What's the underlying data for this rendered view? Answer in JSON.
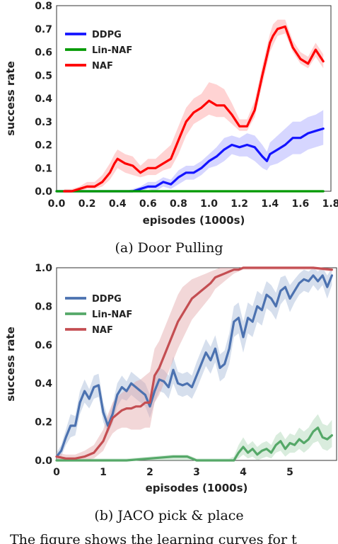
{
  "chart_data": [
    {
      "type": "line",
      "xlabel": "episodes (1000s)",
      "ylabel": "success rate",
      "xlim": [
        0.0,
        1.8
      ],
      "ylim": [
        0.0,
        0.8
      ],
      "xticks": [
        "0.0",
        "0.2",
        "0.4",
        "0.6",
        "0.8",
        "1.0",
        "1.2",
        "1.4",
        "1.6",
        "1.8"
      ],
      "yticks": [
        "0.0",
        "0.1",
        "0.2",
        "0.3",
        "0.4",
        "0.5",
        "0.6",
        "0.7",
        "0.8"
      ],
      "legend_position": "upper-left",
      "grid": false,
      "series": [
        {
          "name": "DDPG",
          "color": "#1414ff",
          "band_color": "#8a8aff",
          "x": [
            0.0,
            0.45,
            0.5,
            0.55,
            0.6,
            0.65,
            0.7,
            0.75,
            0.8,
            0.85,
            0.9,
            0.95,
            1.0,
            1.05,
            1.1,
            1.15,
            1.2,
            1.25,
            1.3,
            1.35,
            1.38,
            1.4,
            1.45,
            1.5,
            1.55,
            1.6,
            1.65,
            1.7,
            1.75
          ],
          "y": [
            0.0,
            0.0,
            0.0,
            0.01,
            0.02,
            0.02,
            0.04,
            0.03,
            0.06,
            0.08,
            0.08,
            0.1,
            0.13,
            0.15,
            0.18,
            0.2,
            0.19,
            0.2,
            0.19,
            0.15,
            0.13,
            0.16,
            0.18,
            0.2,
            0.23,
            0.23,
            0.25,
            0.26,
            0.27
          ],
          "lower": [
            0.0,
            0.0,
            0.0,
            0.0,
            0.01,
            0.0,
            0.02,
            0.01,
            0.03,
            0.05,
            0.05,
            0.07,
            0.1,
            0.11,
            0.13,
            0.16,
            0.15,
            0.15,
            0.13,
            0.1,
            0.09,
            0.11,
            0.12,
            0.14,
            0.16,
            0.16,
            0.18,
            0.19,
            0.2
          ],
          "upper": [
            0.0,
            0.0,
            0.01,
            0.02,
            0.04,
            0.04,
            0.06,
            0.05,
            0.09,
            0.11,
            0.11,
            0.13,
            0.16,
            0.19,
            0.23,
            0.24,
            0.23,
            0.25,
            0.24,
            0.2,
            0.17,
            0.21,
            0.24,
            0.27,
            0.3,
            0.3,
            0.32,
            0.33,
            0.35
          ]
        },
        {
          "name": "Lin-NAF",
          "color": "#009900",
          "x": [
            0.0,
            1.75
          ],
          "y": [
            0.0,
            0.0
          ]
        },
        {
          "name": "NAF",
          "color": "#ff0000",
          "band_color": "#ff8080",
          "x": [
            0.05,
            0.1,
            0.15,
            0.2,
            0.25,
            0.3,
            0.35,
            0.38,
            0.4,
            0.45,
            0.5,
            0.55,
            0.6,
            0.65,
            0.7,
            0.75,
            0.8,
            0.85,
            0.9,
            0.95,
            1.0,
            1.05,
            1.1,
            1.15,
            1.2,
            1.25,
            1.3,
            1.35,
            1.4,
            1.42,
            1.45,
            1.5,
            1.55,
            1.6,
            1.65,
            1.7,
            1.75
          ],
          "y": [
            0.0,
            0.0,
            0.01,
            0.02,
            0.02,
            0.04,
            0.08,
            0.12,
            0.14,
            0.12,
            0.11,
            0.08,
            0.1,
            0.1,
            0.12,
            0.14,
            0.22,
            0.3,
            0.34,
            0.36,
            0.39,
            0.37,
            0.37,
            0.33,
            0.28,
            0.28,
            0.35,
            0.5,
            0.64,
            0.67,
            0.7,
            0.71,
            0.62,
            0.57,
            0.55,
            0.61,
            0.56
          ],
          "lower": [
            0.0,
            0.0,
            0.0,
            0.01,
            0.01,
            0.02,
            0.05,
            0.08,
            0.1,
            0.08,
            0.07,
            0.06,
            0.07,
            0.07,
            0.09,
            0.1,
            0.16,
            0.24,
            0.29,
            0.31,
            0.33,
            0.32,
            0.32,
            0.29,
            0.26,
            0.26,
            0.32,
            0.46,
            0.6,
            0.63,
            0.67,
            0.68,
            0.6,
            0.55,
            0.53,
            0.58,
            0.53
          ],
          "upper": [
            0.01,
            0.01,
            0.02,
            0.04,
            0.04,
            0.07,
            0.12,
            0.16,
            0.18,
            0.16,
            0.15,
            0.11,
            0.14,
            0.14,
            0.17,
            0.2,
            0.28,
            0.36,
            0.4,
            0.42,
            0.47,
            0.46,
            0.44,
            0.38,
            0.31,
            0.31,
            0.39,
            0.54,
            0.68,
            0.72,
            0.74,
            0.74,
            0.65,
            0.6,
            0.58,
            0.64,
            0.59
          ]
        }
      ]
    },
    {
      "type": "line",
      "xlabel": "episodes (1000s)",
      "ylabel": "success rate",
      "xlim": [
        0,
        6
      ],
      "ylim": [
        0.0,
        1.0
      ],
      "xticks": [
        "0",
        "1",
        "2",
        "3",
        "4",
        "5"
      ],
      "yticks": [
        "0.0",
        "0.2",
        "0.4",
        "0.6",
        "0.8",
        "1.0"
      ],
      "legend_position": "upper-left",
      "grid": false,
      "series": [
        {
          "name": "DDPG",
          "color": "#4c72b0",
          "band_color": "#a5b8d8",
          "x": [
            0.0,
            0.1,
            0.2,
            0.3,
            0.4,
            0.5,
            0.6,
            0.7,
            0.8,
            0.9,
            1.0,
            1.1,
            1.2,
            1.3,
            1.4,
            1.5,
            1.6,
            1.7,
            1.8,
            1.9,
            2.0,
            2.1,
            2.2,
            2.3,
            2.4,
            2.5,
            2.6,
            2.7,
            2.8,
            2.9,
            3.0,
            3.1,
            3.2,
            3.3,
            3.4,
            3.5,
            3.6,
            3.7,
            3.8,
            3.9,
            4.0,
            4.1,
            4.2,
            4.3,
            4.4,
            4.5,
            4.6,
            4.7,
            4.8,
            4.9,
            5.0,
            5.1,
            5.2,
            5.3,
            5.4,
            5.5,
            5.6,
            5.7,
            5.8,
            5.9
          ],
          "y": [
            0.02,
            0.05,
            0.12,
            0.18,
            0.18,
            0.3,
            0.36,
            0.32,
            0.38,
            0.39,
            0.25,
            0.18,
            0.24,
            0.34,
            0.38,
            0.36,
            0.4,
            0.38,
            0.36,
            0.34,
            0.28,
            0.36,
            0.42,
            0.41,
            0.38,
            0.47,
            0.4,
            0.39,
            0.4,
            0.38,
            0.44,
            0.5,
            0.56,
            0.52,
            0.58,
            0.48,
            0.5,
            0.58,
            0.72,
            0.74,
            0.64,
            0.74,
            0.72,
            0.8,
            0.78,
            0.86,
            0.84,
            0.8,
            0.88,
            0.9,
            0.84,
            0.88,
            0.92,
            0.94,
            0.93,
            0.96,
            0.93,
            0.96,
            0.9,
            0.96
          ],
          "lower": [
            0.0,
            0.02,
            0.08,
            0.12,
            0.13,
            0.24,
            0.3,
            0.27,
            0.32,
            0.33,
            0.2,
            0.14,
            0.19,
            0.28,
            0.32,
            0.31,
            0.34,
            0.32,
            0.3,
            0.28,
            0.22,
            0.3,
            0.36,
            0.35,
            0.32,
            0.4,
            0.34,
            0.33,
            0.34,
            0.32,
            0.37,
            0.43,
            0.49,
            0.45,
            0.51,
            0.41,
            0.43,
            0.5,
            0.64,
            0.66,
            0.56,
            0.66,
            0.64,
            0.72,
            0.7,
            0.79,
            0.77,
            0.73,
            0.81,
            0.84,
            0.77,
            0.82,
            0.86,
            0.88,
            0.87,
            0.91,
            0.88,
            0.91,
            0.84,
            0.91
          ],
          "upper": [
            0.04,
            0.08,
            0.16,
            0.24,
            0.23,
            0.36,
            0.42,
            0.37,
            0.44,
            0.45,
            0.3,
            0.22,
            0.29,
            0.4,
            0.44,
            0.41,
            0.46,
            0.44,
            0.42,
            0.4,
            0.34,
            0.42,
            0.48,
            0.47,
            0.44,
            0.54,
            0.46,
            0.45,
            0.46,
            0.44,
            0.51,
            0.57,
            0.63,
            0.59,
            0.65,
            0.55,
            0.57,
            0.66,
            0.8,
            0.82,
            0.72,
            0.82,
            0.8,
            0.88,
            0.86,
            0.93,
            0.91,
            0.87,
            0.95,
            0.96,
            0.91,
            0.94,
            0.97,
            0.99,
            0.98,
            1.0,
            0.98,
            1.0,
            0.96,
            1.0
          ]
        },
        {
          "name": "Lin-NAF",
          "color": "#55a868",
          "band_color": "#aad4b4",
          "x": [
            0.0,
            0.5,
            1.0,
            1.5,
            2.0,
            2.5,
            2.8,
            3.0,
            3.2,
            3.4,
            3.6,
            3.7,
            3.8,
            3.9,
            4.0,
            4.1,
            4.2,
            4.3,
            4.4,
            4.5,
            4.6,
            4.7,
            4.8,
            4.9,
            5.0,
            5.1,
            5.2,
            5.3,
            5.4,
            5.5,
            5.6,
            5.7,
            5.8,
            5.9
          ],
          "y": [
            0.0,
            0.0,
            0.0,
            0.0,
            0.01,
            0.02,
            0.02,
            0.0,
            0.0,
            0.0,
            0.0,
            0.0,
            0.0,
            0.04,
            0.07,
            0.04,
            0.06,
            0.03,
            0.05,
            0.06,
            0.04,
            0.08,
            0.1,
            0.06,
            0.09,
            0.08,
            0.11,
            0.09,
            0.11,
            0.15,
            0.17,
            0.12,
            0.11,
            0.13
          ],
          "lower": [
            0.0,
            0.0,
            0.0,
            0.0,
            0.0,
            0.0,
            0.0,
            0.0,
            0.0,
            0.0,
            0.0,
            0.0,
            0.0,
            0.01,
            0.03,
            0.01,
            0.02,
            0.0,
            0.01,
            0.02,
            0.01,
            0.04,
            0.05,
            0.02,
            0.04,
            0.04,
            0.06,
            0.04,
            0.06,
            0.09,
            0.1,
            0.06,
            0.05,
            0.07
          ],
          "upper": [
            0.01,
            0.01,
            0.01,
            0.01,
            0.02,
            0.03,
            0.03,
            0.01,
            0.01,
            0.01,
            0.01,
            0.01,
            0.02,
            0.08,
            0.12,
            0.08,
            0.1,
            0.07,
            0.09,
            0.1,
            0.08,
            0.13,
            0.15,
            0.11,
            0.14,
            0.13,
            0.17,
            0.15,
            0.17,
            0.21,
            0.24,
            0.19,
            0.18,
            0.21
          ]
        },
        {
          "name": "NAF",
          "color": "#c44e52",
          "band_color": "#e2a7a9",
          "x": [
            0.0,
            0.2,
            0.4,
            0.6,
            0.8,
            1.0,
            1.1,
            1.2,
            1.3,
            1.4,
            1.5,
            1.6,
            1.7,
            1.8,
            1.9,
            2.0,
            2.1,
            2.2,
            2.3,
            2.4,
            2.5,
            2.6,
            2.7,
            2.8,
            2.9,
            3.0,
            3.1,
            3.2,
            3.3,
            3.4,
            3.5,
            3.6,
            3.7,
            3.8,
            3.9,
            4.0,
            4.5,
            5.0,
            5.5,
            5.9
          ],
          "y": [
            0.02,
            0.01,
            0.01,
            0.02,
            0.04,
            0.1,
            0.16,
            0.22,
            0.24,
            0.26,
            0.27,
            0.27,
            0.28,
            0.28,
            0.3,
            0.3,
            0.44,
            0.48,
            0.54,
            0.6,
            0.66,
            0.72,
            0.76,
            0.8,
            0.84,
            0.86,
            0.88,
            0.9,
            0.92,
            0.95,
            0.96,
            0.97,
            0.98,
            0.99,
            0.99,
            1.0,
            1.0,
            1.0,
            1.0,
            0.99
          ],
          "lower": [
            0.0,
            0.0,
            0.0,
            0.0,
            0.01,
            0.05,
            0.1,
            0.14,
            0.16,
            0.17,
            0.17,
            0.16,
            0.16,
            0.16,
            0.17,
            0.17,
            0.3,
            0.34,
            0.4,
            0.46,
            0.52,
            0.58,
            0.63,
            0.68,
            0.73,
            0.76,
            0.79,
            0.82,
            0.85,
            0.89,
            0.91,
            0.93,
            0.95,
            0.97,
            0.98,
            0.99,
            0.99,
            0.99,
            0.99,
            0.98
          ],
          "upper": [
            0.04,
            0.03,
            0.03,
            0.05,
            0.08,
            0.16,
            0.24,
            0.3,
            0.33,
            0.35,
            0.37,
            0.39,
            0.41,
            0.42,
            0.44,
            0.46,
            0.58,
            0.62,
            0.68,
            0.74,
            0.8,
            0.86,
            0.9,
            0.92,
            0.94,
            0.95,
            0.96,
            0.97,
            0.98,
            0.99,
            1.0,
            1.0,
            1.0,
            1.0,
            1.0,
            1.0,
            1.0,
            1.0,
            1.0,
            1.0
          ]
        }
      ]
    }
  ],
  "captions": [
    "(a) Door Pulling",
    "(b) JACO pick & place"
  ],
  "body_text": "The figure shows the learning curves for t"
}
